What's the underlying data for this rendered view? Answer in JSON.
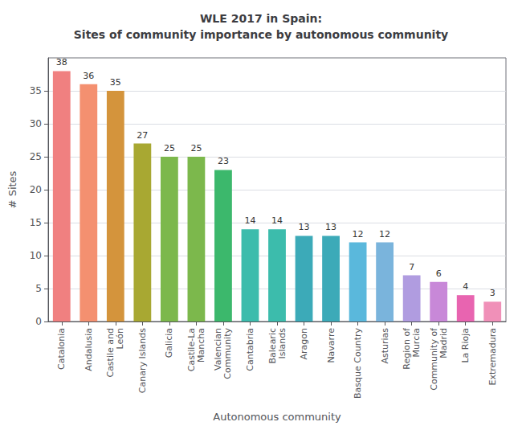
{
  "chart_data": {
    "type": "bar",
    "title": "WLE 2017 in Spain:\nSites of community importance by autonomous community",
    "xlabel": "Autonomous community",
    "ylabel": "# Sites",
    "categories": [
      "Catalonia",
      "Andalusia",
      "Castile and\nLeón",
      "Canary Islands",
      "Galicia",
      "Castile-La\nMancha",
      "Valencian\nCommunity",
      "Cantabria",
      "Balearic\nIslands",
      "Aragon",
      "Navarre",
      "Basque Country",
      "Asturias",
      "Region of\nMurcia",
      "Community of\nMadrid",
      "La Rioja",
      "Extremadura"
    ],
    "values": [
      38,
      36,
      35,
      27,
      25,
      25,
      23,
      14,
      14,
      13,
      13,
      12,
      12,
      7,
      6,
      4,
      3
    ],
    "colors": [
      "#F08080",
      "#F49070",
      "#D4943C",
      "#A8A832",
      "#7CB84C",
      "#7CB84C",
      "#3CB86C",
      "#3CBCAC",
      "#3CBCAC",
      "#3CAAB8",
      "#3CAAB8",
      "#5AB8DC",
      "#7AB4DC",
      "#B09CE0",
      "#C888D8",
      "#E864B0",
      "#F090B8"
    ],
    "ylim": [
      0,
      40
    ],
    "yticks": [
      0,
      5,
      10,
      15,
      20,
      25,
      30,
      35
    ],
    "grid": true,
    "data_labels": true
  }
}
